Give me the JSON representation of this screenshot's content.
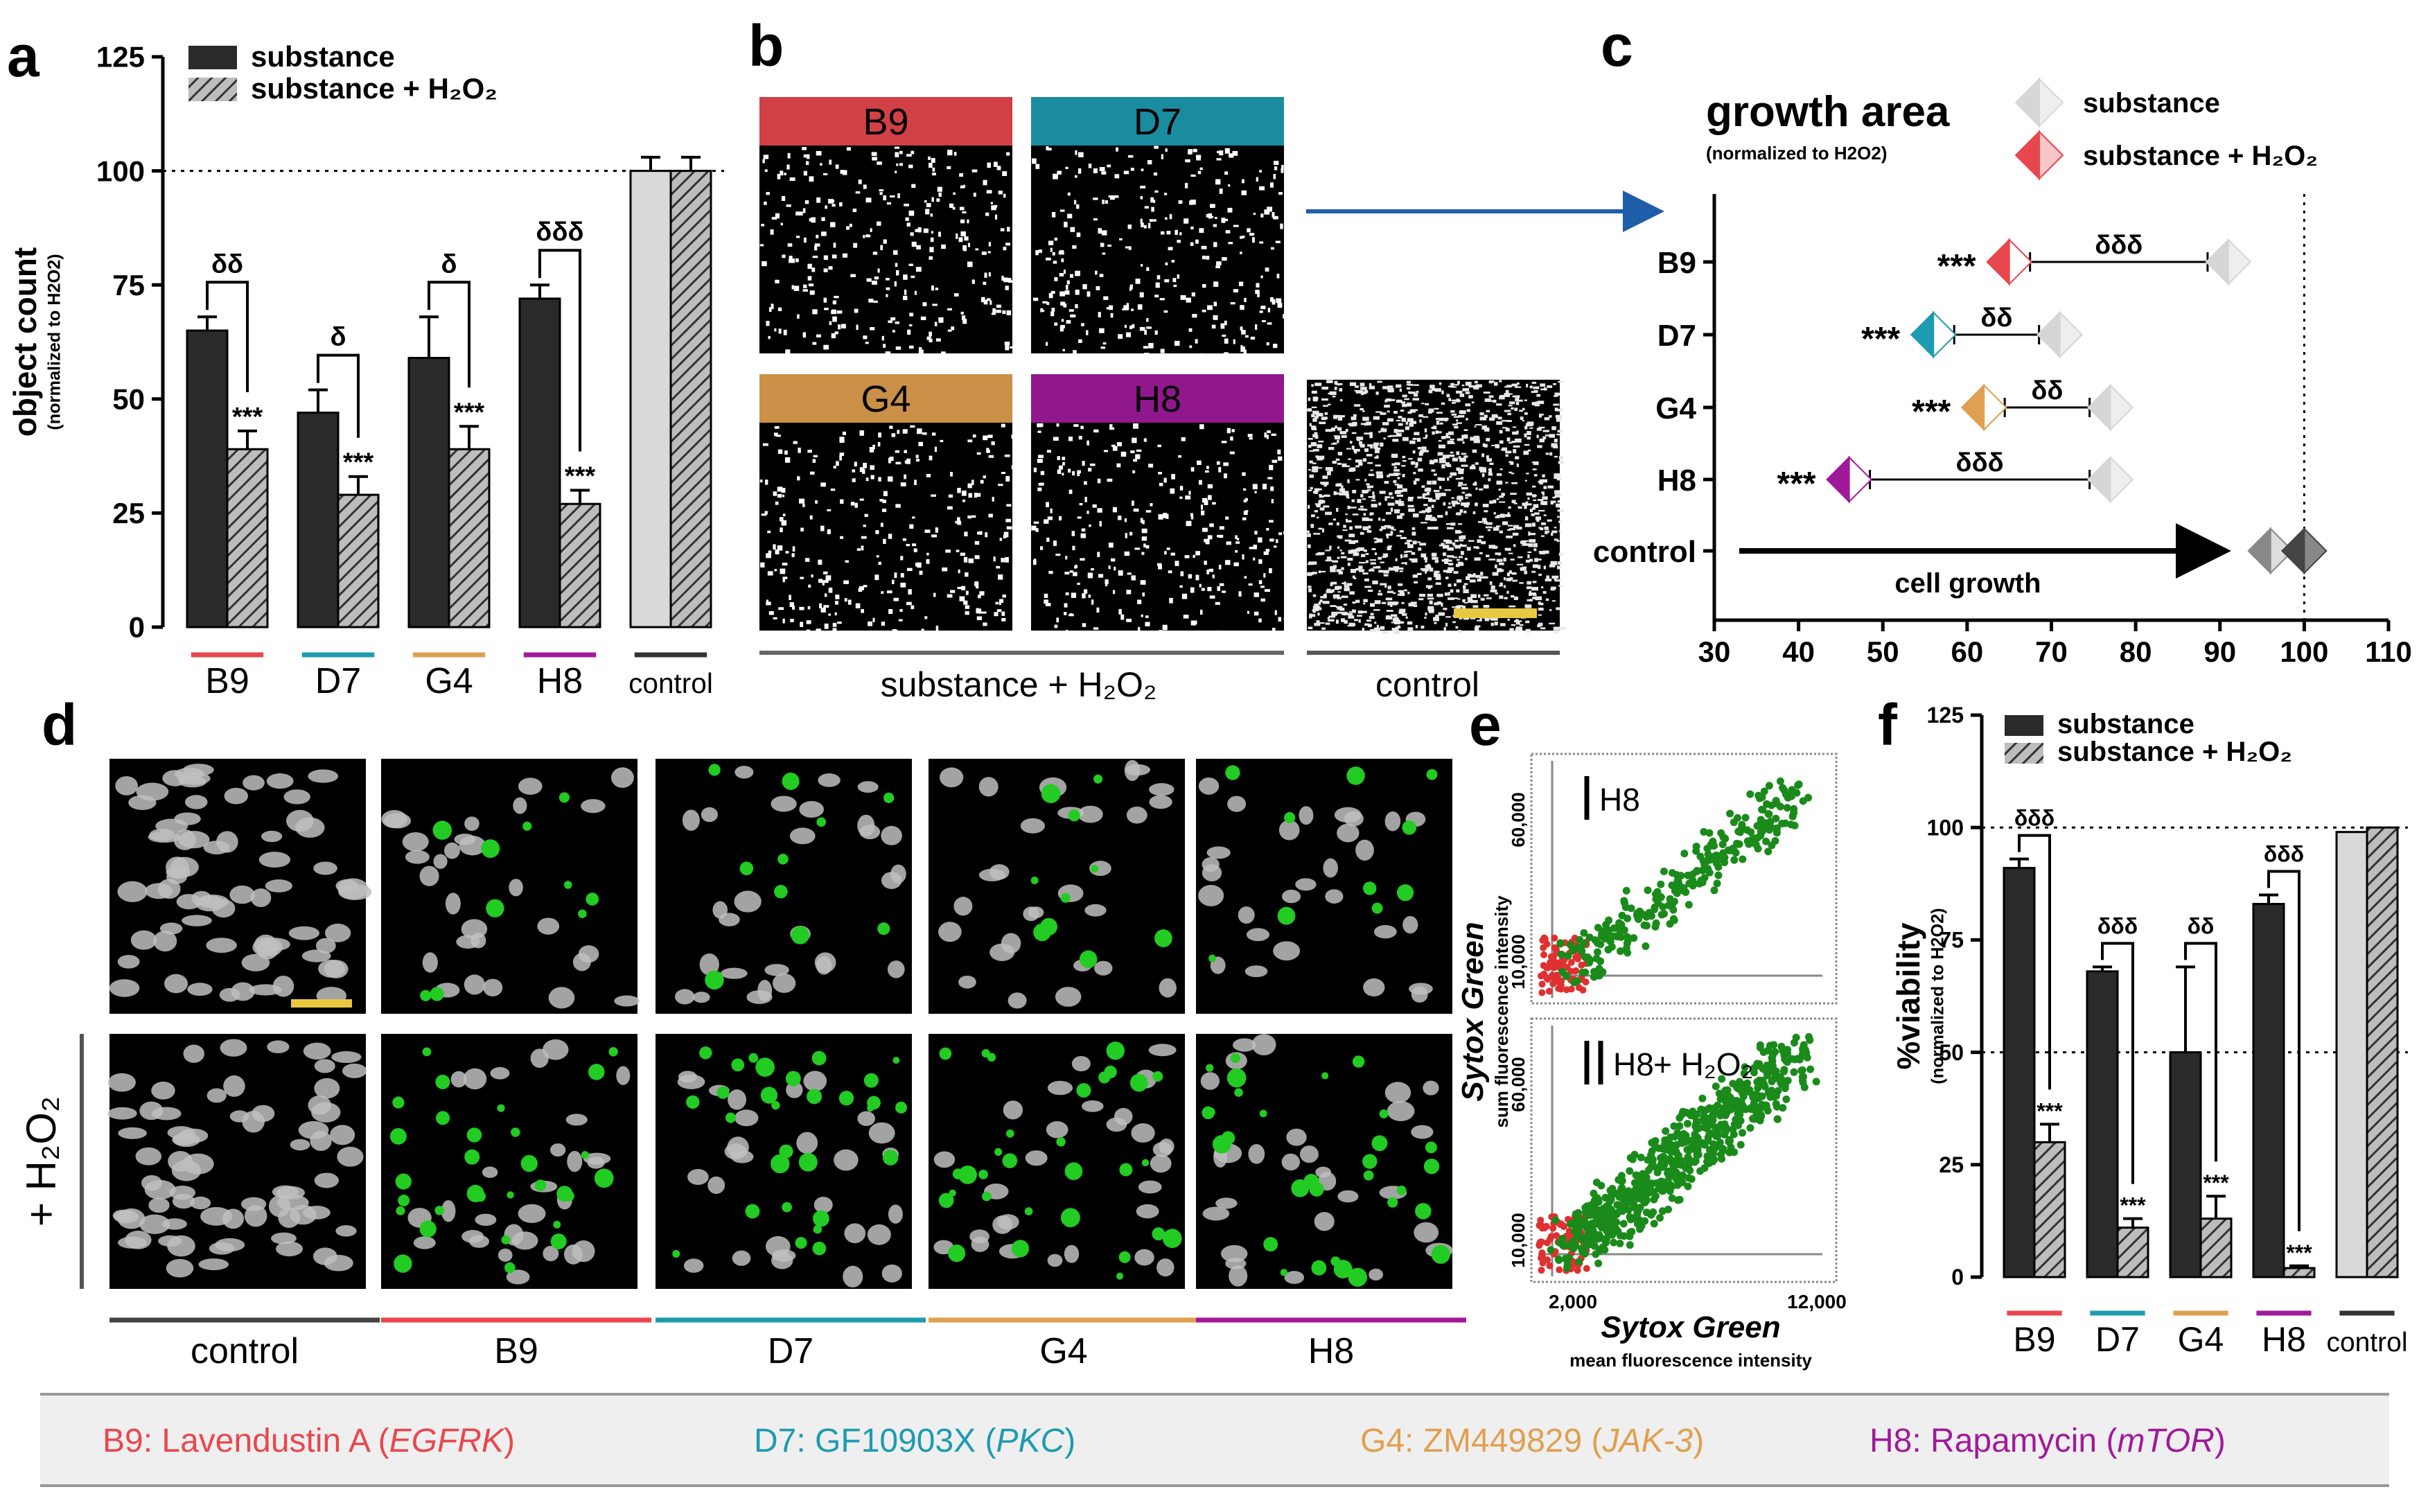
{
  "colors": {
    "B9": "#e8474d",
    "D7": "#1d9bb0",
    "G4": "#e0a050",
    "H8": "#a1199b",
    "control": "#333333",
    "dark_bar": "#2a2a2a",
    "hatch_bar": "#8a8a8a",
    "light_bar": "#d9d9d9",
    "gfp": "#22cc22",
    "red_dot": "#e03030",
    "arrow": "#1f5ea8"
  },
  "panel_letters": [
    "a",
    "b",
    "c",
    "d",
    "e",
    "f"
  ],
  "chart_data": [
    {
      "panel": "a",
      "type": "bar",
      "ylabel": "object count",
      "ylabel_sub": "(normalized to H2O2)",
      "ylim": [
        0,
        125
      ],
      "yticks": [
        0,
        25,
        50,
        75,
        100,
        125
      ],
      "reference_line": 100,
      "legend": [
        "substance",
        "substance + H₂O₂"
      ],
      "categories": [
        "B9",
        "D7",
        "G4",
        "H8",
        "control"
      ],
      "series": [
        {
          "name": "substance",
          "values": [
            65,
            47,
            59,
            72,
            100
          ],
          "errors": [
            3,
            5,
            9,
            3,
            3
          ]
        },
        {
          "name": "substance + H₂O₂",
          "values": [
            39,
            29,
            39,
            27,
            100
          ],
          "errors": [
            4,
            4,
            5,
            3,
            3
          ]
        }
      ],
      "stars": [
        "***",
        "***",
        "***",
        "***",
        ""
      ],
      "brackets": [
        "δδ",
        "δ",
        "δ",
        "δδδ",
        ""
      ]
    },
    {
      "panel": "c",
      "type": "scatter",
      "title": "growth area",
      "subtitle": "(normalized to H2O2)",
      "legend": [
        "substance",
        "substance + H₂O₂"
      ],
      "categories": [
        "B9",
        "D7",
        "G4",
        "H8",
        "control"
      ],
      "xlim": [
        30,
        110
      ],
      "xticks": [
        30,
        40,
        50,
        60,
        70,
        80,
        90,
        100,
        110
      ],
      "reference_line": 100,
      "series": [
        {
          "name": "substance",
          "values": [
            91,
            71,
            77,
            77,
            96
          ]
        },
        {
          "name": "substance + H₂O₂",
          "values": [
            65,
            56,
            62,
            46,
            100
          ]
        }
      ],
      "stars": [
        "***",
        "***",
        "***",
        "***",
        ""
      ],
      "brackets": [
        "δδδ",
        "δδ",
        "δδ",
        "δδδ",
        ""
      ],
      "arrow_label": "cell growth"
    },
    {
      "panel": "e",
      "type": "scatter",
      "xlabel": "Sytox Green",
      "xlabel_sub": "mean fluorescence intensity",
      "ylabel": "Sytox Green",
      "ylabel_sub": "sum fluorescence intensity",
      "xticks": [
        "2,000",
        "12,000"
      ],
      "yticks": [
        "10,000",
        "60,000"
      ],
      "plots": [
        {
          "label": "H8",
          "label_suffix": ""
        },
        {
          "label": "H8",
          "label_suffix": " + H₂O₂"
        }
      ]
    },
    {
      "panel": "f",
      "type": "bar",
      "ylabel": "%viability",
      "ylabel_sub": "(normalized to H2O2)",
      "ylim": [
        0,
        125
      ],
      "yticks": [
        0,
        25,
        50,
        75,
        100,
        125
      ],
      "reference_lines": [
        100,
        50
      ],
      "legend": [
        "substance",
        "substance + H₂O₂"
      ],
      "categories": [
        "B9",
        "D7",
        "G4",
        "H8",
        "control"
      ],
      "series": [
        {
          "name": "substance",
          "values": [
            91,
            68,
            50,
            83,
            99
          ],
          "errors": [
            2,
            1,
            19,
            2,
            0
          ]
        },
        {
          "name": "substance + H₂O₂",
          "values": [
            30,
            11,
            13,
            2,
            100
          ],
          "errors": [
            4,
            2,
            5,
            0.5,
            0
          ]
        }
      ],
      "stars": [
        "***",
        "***",
        "***",
        "***",
        ""
      ],
      "brackets": [
        "δδδ",
        "δδδ",
        "δδ",
        "δδδ",
        ""
      ]
    }
  ],
  "panel_b": {
    "tiles": [
      "B9",
      "D7",
      "G4",
      "H8"
    ],
    "caption_substance": "substance + H₂O₂",
    "caption_control": "control"
  },
  "panel_d": {
    "columns": [
      "control",
      "B9",
      "D7",
      "G4",
      "H8"
    ],
    "row_label": "+ H₂O₂"
  },
  "footer": [
    {
      "code": "B9",
      "text": "B9: Lavendustin A (",
      "target": "EGFRK",
      "close": ")"
    },
    {
      "code": "D7",
      "text": "D7: GF10903X (",
      "target": "PKC",
      "close": ")"
    },
    {
      "code": "G4",
      "text": "G4: ZM449829 (",
      "target": "JAK-3",
      "close": ")"
    },
    {
      "code": "H8",
      "text": "H8: Rapamycin (",
      "target": "mTOR",
      "close": ")"
    }
  ]
}
